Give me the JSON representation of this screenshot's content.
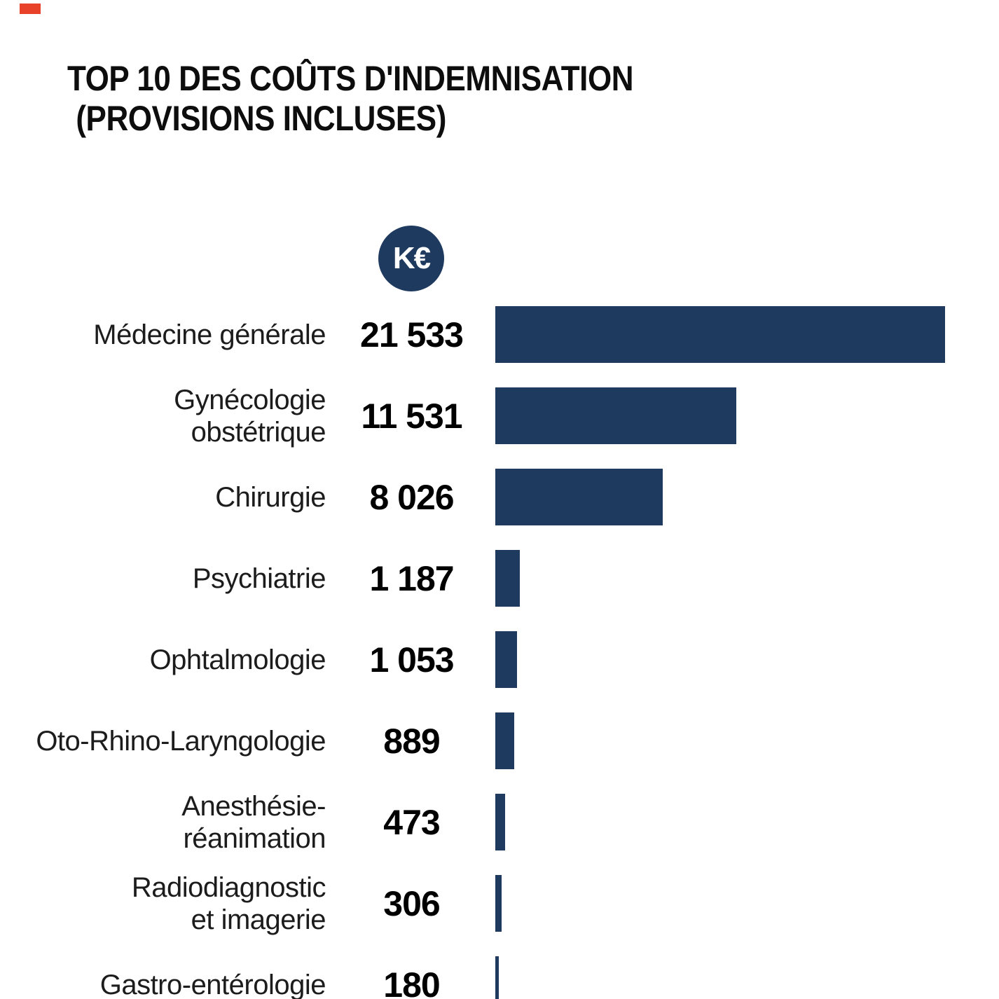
{
  "corner_mark": {
    "color": "#e8432a"
  },
  "title": {
    "line1": "TOP 10 DES COÛTS D'INDEMNISATION",
    "line2": "(PROVISIONS INCLUSES)"
  },
  "unit_badge": {
    "label": "K€"
  },
  "colors": {
    "bar": "#1e3a5f",
    "badge": "#1e3a5f"
  },
  "chart_data": {
    "type": "bar",
    "orientation": "horizontal",
    "title": "TOP 10 DES COÛTS D'INDEMNISATION (PROVISIONS INCLUSES)",
    "unit": "K€",
    "grid": false,
    "legend_position": "none",
    "xlim": [
      0,
      21533
    ],
    "categories": [
      "Médecine générale",
      "Gynécologie obstétrique",
      "Chirurgie",
      "Psychiatrie",
      "Ophtalmologie",
      "Oto-Rhino-Laryngologie",
      "Anesthésie-réanimation",
      "Radiodiagnostic et imagerie",
      "Gastro-entérologie"
    ],
    "category_lines": [
      [
        "Médecine générale"
      ],
      [
        "Gynécologie",
        "obstétrique"
      ],
      [
        "Chirurgie"
      ],
      [
        "Psychiatrie"
      ],
      [
        "Ophtalmologie"
      ],
      [
        "Oto-Rhino-Laryngologie"
      ],
      [
        "Anesthésie-",
        "réanimation"
      ],
      [
        "Radiodiagnostic",
        "et imagerie"
      ],
      [
        "Gastro-entérologie"
      ]
    ],
    "values": [
      21533,
      11531,
      8026,
      1187,
      1053,
      889,
      473,
      306,
      180
    ],
    "value_labels": [
      "21 533",
      "11 531",
      "8 026",
      "1 187",
      "1 053",
      "889",
      "473",
      "306",
      "180"
    ]
  }
}
